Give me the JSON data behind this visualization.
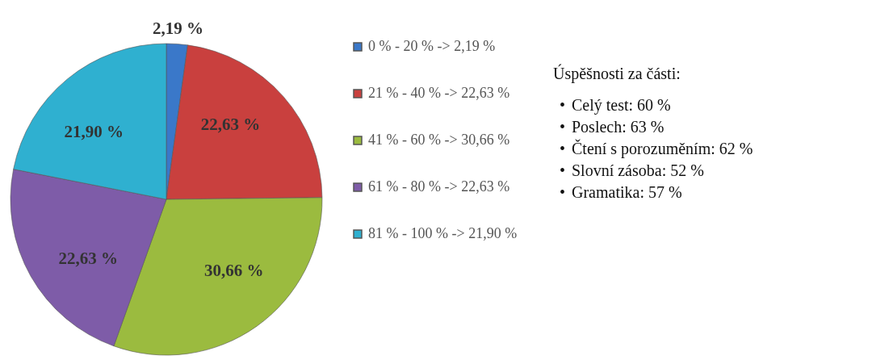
{
  "chart_data": [
    {
      "type": "pie",
      "categories": [
        "0 % - 20 % -> 2,19 %",
        "21 % - 40 % -> 22,63 %",
        "41 % - 60 % -> 30,66 %",
        "61 % - 80 % -> 22,63 %",
        "81 % - 100 % -> 21,90 %"
      ],
      "values": [
        2.19,
        22.63,
        30.66,
        22.63,
        21.9
      ],
      "colors": [
        "#3a78c9",
        "#c9403e",
        "#9bbb3f",
        "#7e5ca8",
        "#2fb0d0"
      ],
      "value_labels": [
        "2,19 %",
        "22,63 %",
        "30,66 %",
        "22,63 %",
        "21,90 %"
      ],
      "legend": "right"
    },
    {
      "type": "other",
      "title": "Úspěšnosti za části:",
      "annotations": [
        "•\tCelý test: 60 %",
        "•\tPoslech: 63 %",
        "•\tČtení s porozuměním: 62 %",
        "•\tSlovní zásoba: 52 %",
        "•\tGramatika: 57 %"
      ]
    }
  ]
}
